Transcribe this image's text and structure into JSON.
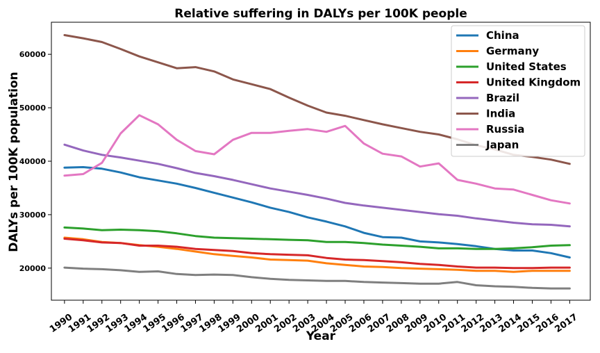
{
  "chart_data": {
    "type": "line",
    "title": "Relative suffering in DALYs per 100K people",
    "xlabel": "Year",
    "ylabel": "DALYs per 100K population",
    "x": [
      1990,
      1991,
      1992,
      1993,
      1994,
      1995,
      1996,
      1997,
      1998,
      1999,
      2000,
      2001,
      2002,
      2003,
      2004,
      2005,
      2006,
      2007,
      2008,
      2009,
      2010,
      2011,
      2012,
      2013,
      2014,
      2015,
      2016,
      2017
    ],
    "x_tick_labels": [
      "1990",
      "1991",
      "1992",
      "1993",
      "1994",
      "1995",
      "1996",
      "1997",
      "1998",
      "1999",
      "2000",
      "2001",
      "2002",
      "2003",
      "2004",
      "2005",
      "2006",
      "2007",
      "2008",
      "2009",
      "2010",
      "2011",
      "2012",
      "2013",
      "2014",
      "2015",
      "2016",
      "2017"
    ],
    "y_ticks": [
      20000,
      30000,
      40000,
      50000,
      60000
    ],
    "y_tick_labels": [
      "20000",
      "30000",
      "40000",
      "50000",
      "60000"
    ],
    "ylim": [
      14000,
      66000
    ],
    "xlim": [
      1989.3,
      2018.1
    ],
    "grid": false,
    "legend_position": "top-right",
    "series": [
      {
        "name": "China",
        "color": "#1f77b4",
        "values": [
          38800,
          38900,
          38600,
          37900,
          37000,
          36400,
          35800,
          35000,
          34100,
          33200,
          32300,
          31300,
          30500,
          29500,
          28700,
          27800,
          26600,
          25800,
          25700,
          25000,
          24800,
          24500,
          24100,
          23600,
          23300,
          23300,
          22800,
          22000
        ]
      },
      {
        "name": "Germany",
        "color": "#ff7f0e",
        "values": [
          25700,
          25400,
          24900,
          24700,
          24300,
          24000,
          23600,
          23100,
          22600,
          22300,
          22000,
          21600,
          21500,
          21400,
          20900,
          20600,
          20300,
          20200,
          20000,
          19900,
          19800,
          19700,
          19500,
          19500,
          19300,
          19500,
          19500,
          19500
        ]
      },
      {
        "name": "United States",
        "color": "#2ca02c",
        "values": [
          27600,
          27400,
          27100,
          27200,
          27100,
          26900,
          26500,
          26000,
          25700,
          25600,
          25500,
          25400,
          25300,
          25200,
          24900,
          24900,
          24700,
          24400,
          24200,
          24000,
          23700,
          23700,
          23600,
          23600,
          23700,
          23900,
          24200,
          24300
        ]
      },
      {
        "name": "United Kingdom",
        "color": "#d62728",
        "values": [
          25500,
          25200,
          24800,
          24700,
          24200,
          24200,
          24000,
          23600,
          23400,
          23200,
          22800,
          22600,
          22500,
          22400,
          21900,
          21600,
          21500,
          21300,
          21100,
          20800,
          20600,
          20300,
          20100,
          20100,
          20000,
          20000,
          20100,
          20100
        ]
      },
      {
        "name": "Brazil",
        "color": "#9467bd",
        "values": [
          43100,
          42000,
          41200,
          40700,
          40100,
          39500,
          38700,
          37800,
          37200,
          36500,
          35700,
          34900,
          34300,
          33700,
          33000,
          32200,
          31700,
          31300,
          30900,
          30500,
          30100,
          29800,
          29300,
          28900,
          28500,
          28200,
          28100,
          27800
        ]
      },
      {
        "name": "India",
        "color": "#8c564b",
        "values": [
          63600,
          63000,
          62300,
          61000,
          59600,
          58500,
          57400,
          57600,
          56800,
          55300,
          54400,
          53500,
          51900,
          50400,
          49100,
          48500,
          47700,
          46900,
          46200,
          45500,
          45000,
          44100,
          43000,
          42200,
          41200,
          40800,
          40300,
          39500
        ]
      },
      {
        "name": "Russia",
        "color": "#e377c2",
        "values": [
          37300,
          37600,
          39700,
          45200,
          48600,
          46900,
          44000,
          41900,
          41300,
          44000,
          45300,
          45300,
          45700,
          46000,
          45500,
          46600,
          43300,
          41400,
          40900,
          39000,
          39600,
          36500,
          35800,
          34900,
          34700,
          33700,
          32700,
          32100
        ]
      },
      {
        "name": "Japan",
        "color": "#7f7f7f",
        "values": [
          20100,
          19900,
          19800,
          19600,
          19300,
          19400,
          18900,
          18700,
          18800,
          18700,
          18300,
          18000,
          17800,
          17700,
          17600,
          17600,
          17400,
          17300,
          17200,
          17100,
          17100,
          17400,
          16800,
          16600,
          16500,
          16300,
          16200,
          16200
        ]
      }
    ]
  }
}
